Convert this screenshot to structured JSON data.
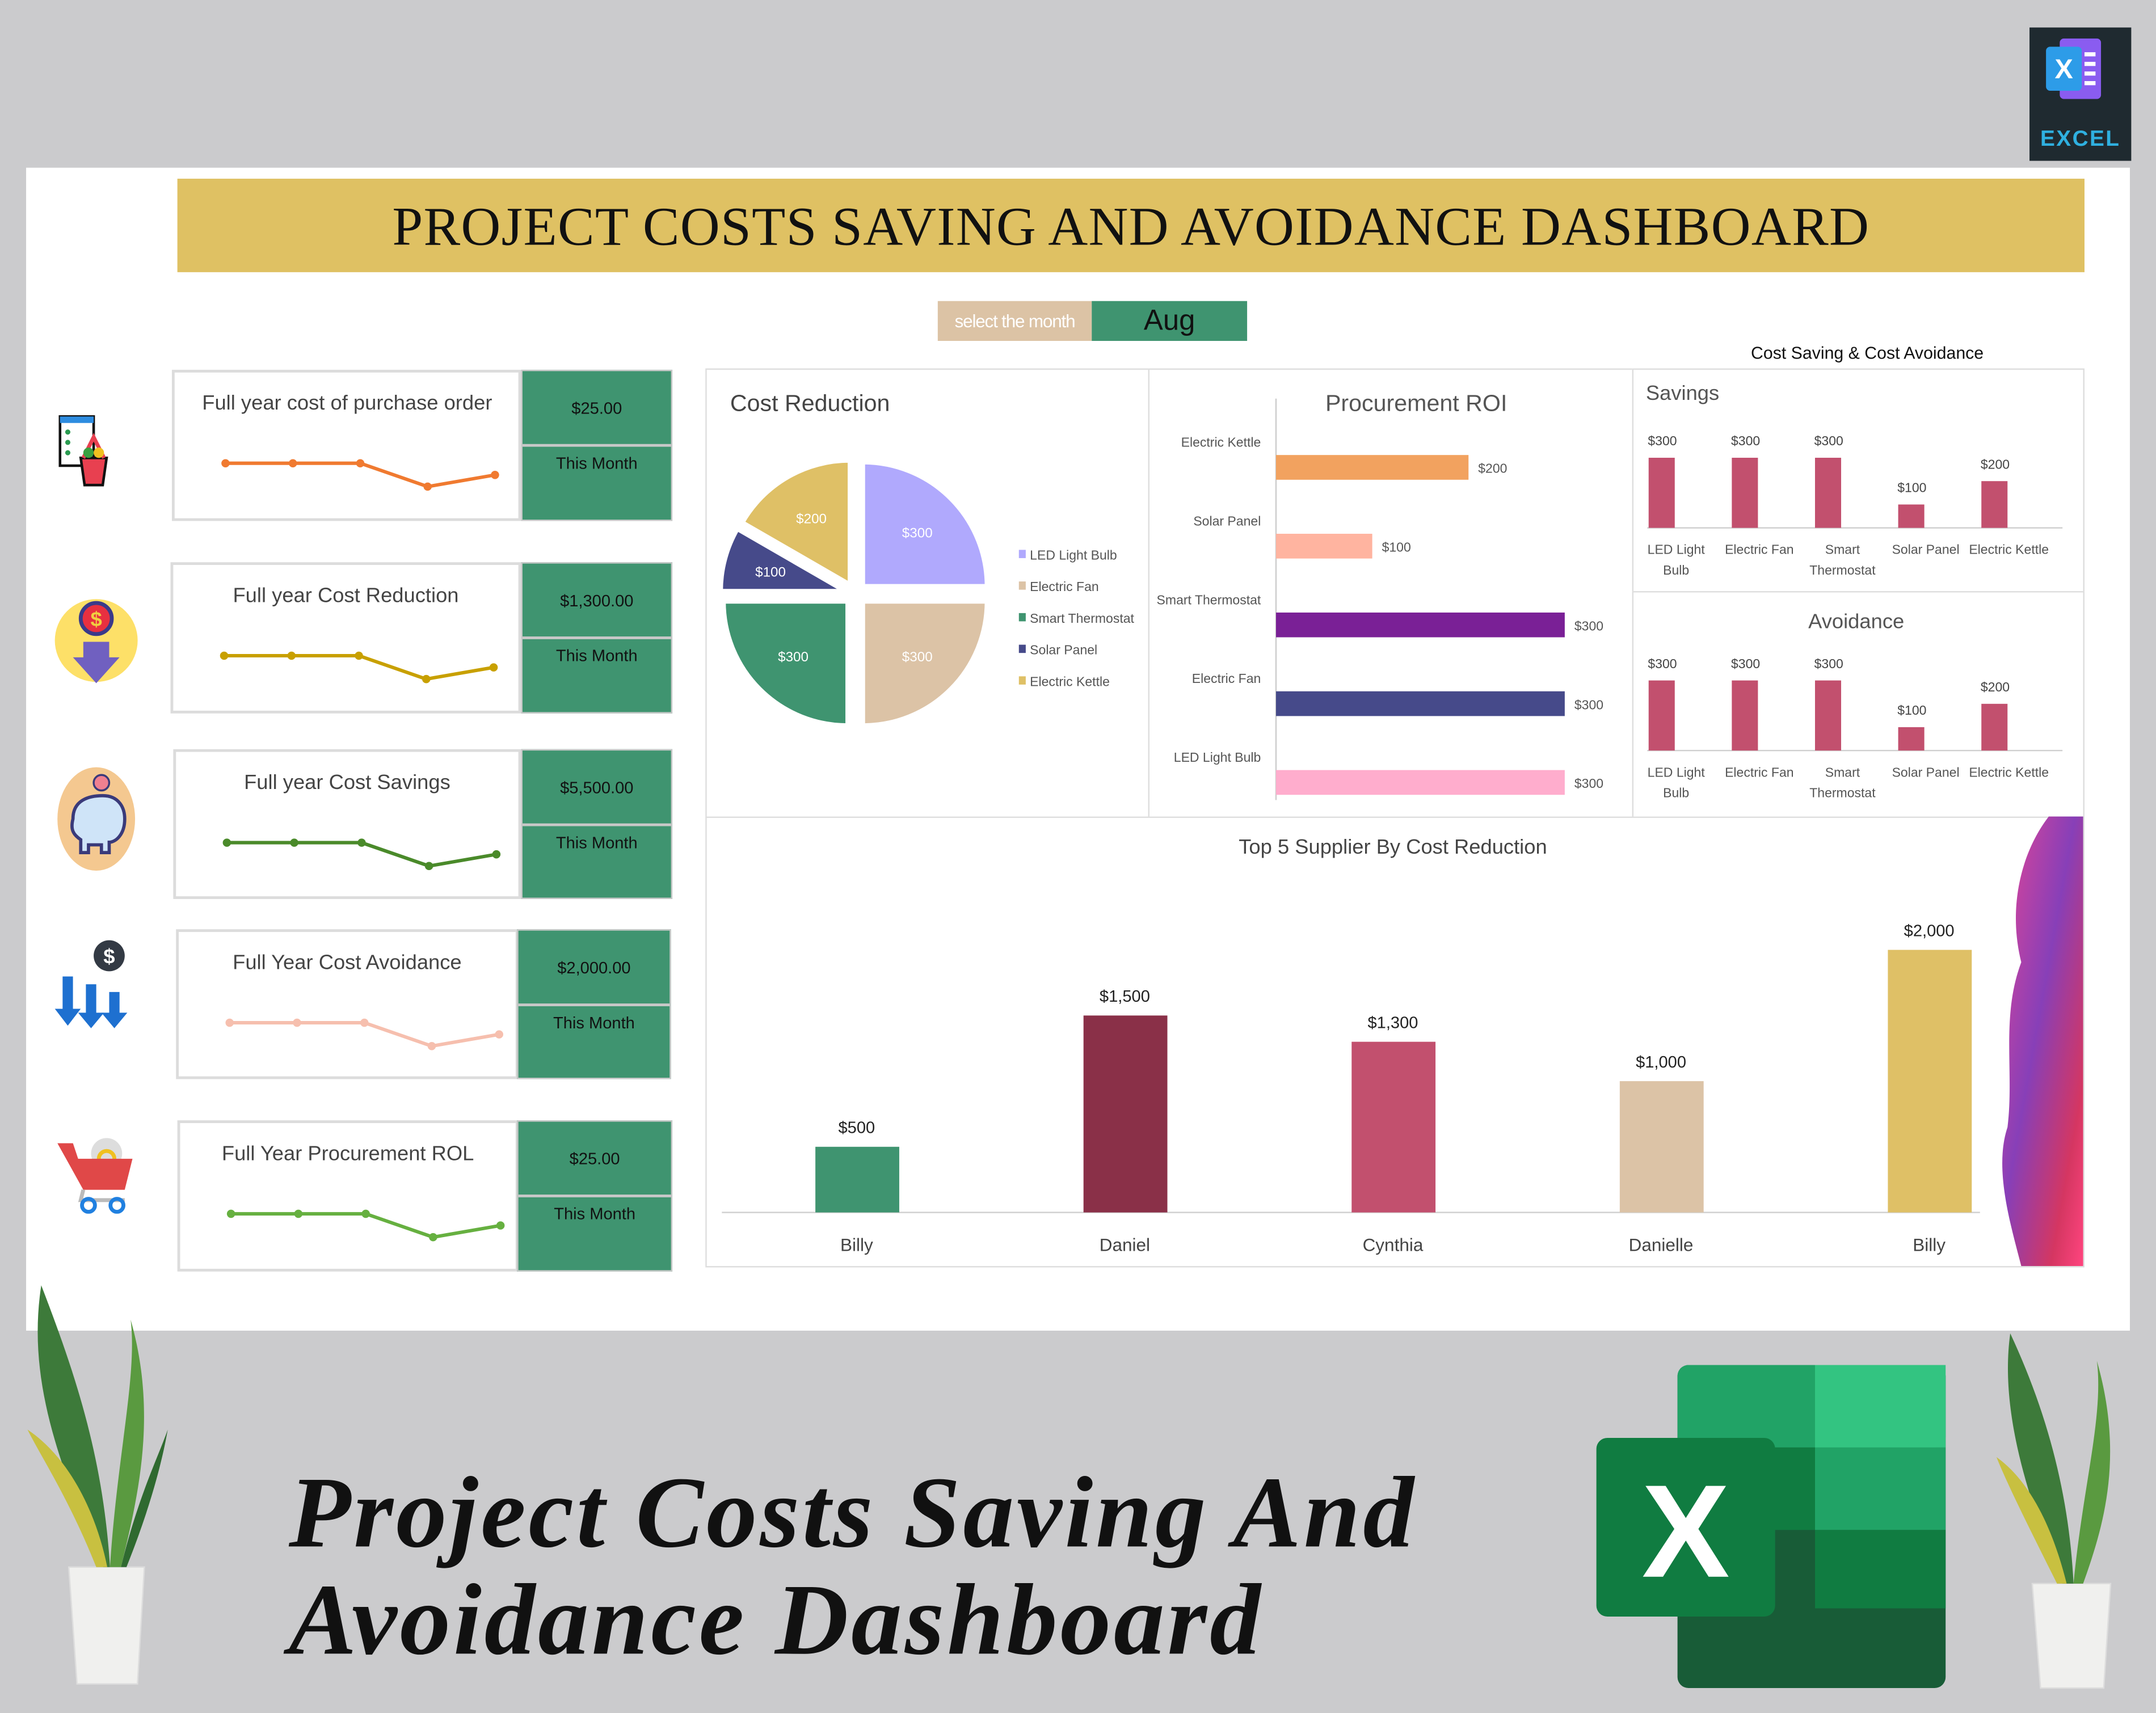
{
  "brand_badge": {
    "label": "EXCEL",
    "icon": "excel-logo-icon"
  },
  "title": "PROJECT COSTS SAVING AND AVOIDANCE DASHBOARD",
  "month_selector": {
    "label": "select the month",
    "value": "Aug"
  },
  "kpis": [
    {
      "title": "Full year cost of purchase order",
      "value": "$25.00",
      "period": "This Month",
      "icon": "purchase-basket-icon",
      "line_color": "#f07a30",
      "trend": [
        3,
        3,
        3,
        1,
        2
      ]
    },
    {
      "title": "Full year Cost Reduction",
      "value": "$1,300.00",
      "period": "This Month",
      "icon": "dollar-down-arrow-icon",
      "line_color": "#c8a000",
      "trend": [
        3,
        3,
        3,
        1,
        2
      ]
    },
    {
      "title": "Full year Cost Savings",
      "value": "$5,500.00",
      "period": "This Month",
      "icon": "piggy-bank-icon",
      "line_color": "#4a8a2a",
      "trend": [
        3,
        3,
        3,
        1,
        2
      ]
    },
    {
      "title": "Full Year Cost Avoidance",
      "value": "$2,000.00",
      "period": "This Month",
      "icon": "dollar-arrows-down-icon",
      "line_color": "#f6bfae",
      "trend": [
        3,
        3,
        3,
        1,
        2
      ]
    },
    {
      "title": "Full Year Procurement ROL",
      "value": "$25.00",
      "period": "This Month",
      "icon": "shopping-cart-gear-icon",
      "line_color": "#66b040",
      "trend": [
        3,
        3,
        3,
        1,
        2
      ]
    }
  ],
  "section_title_cost_saving": "Cost Saving & Cost Avoidance",
  "chart_data": [
    {
      "type": "pie",
      "title": "Cost Reduction",
      "legend": "right",
      "categories": [
        "LED Light Bulb",
        "Electric Fan",
        "Smart Thermostat",
        "Solar Panel",
        "Electric Kettle"
      ],
      "values": [
        300,
        300,
        300,
        100,
        200
      ],
      "labels": [
        "$300",
        "$300",
        "$300",
        "$100",
        "$200"
      ],
      "colors": [
        "#b0a9fd",
        "#dcc3a6",
        "#3f9470",
        "#464a8a",
        "#dfc066"
      ]
    },
    {
      "type": "bar",
      "orientation": "horizontal",
      "title": "Procurement ROI",
      "categories": [
        "Electric Kettle",
        "Solar Panel",
        "Smart Thermostat",
        "Electric Fan",
        "LED Light Bulb"
      ],
      "values": [
        200,
        100,
        300,
        300,
        300
      ],
      "labels": [
        "$200",
        "$100",
        "$300",
        "$300",
        "$300"
      ],
      "colors": [
        "#f2a25f",
        "#ffb4a0",
        "#7a2096",
        "#464a8a",
        "#ffadcd"
      ]
    },
    {
      "type": "bar",
      "title": "Savings",
      "categories": [
        "LED Light Bulb",
        "Electric Fan",
        "Smart Thermostat",
        "Solar Panel",
        "Electric Kettle"
      ],
      "values": [
        300,
        300,
        300,
        100,
        200
      ],
      "labels": [
        "$300",
        "$300",
        "$300",
        "$100",
        "$200"
      ],
      "color": "#c2506e"
    },
    {
      "type": "bar",
      "title": "Avoidance",
      "categories": [
        "LED Light Bulb",
        "Electric Fan",
        "Smart Thermostat",
        "Solar Panel",
        "Electric Kettle"
      ],
      "values": [
        300,
        300,
        300,
        100,
        200
      ],
      "labels": [
        "$300",
        "$300",
        "$300",
        "$100",
        "$200"
      ],
      "color": "#c2506e"
    },
    {
      "type": "bar",
      "title": "Top 5 Supplier By Cost Reduction",
      "categories": [
        "Billy",
        "Daniel",
        "Cynthia",
        "Danielle",
        "Billy"
      ],
      "values": [
        500,
        1500,
        1300,
        1000,
        2000
      ],
      "labels": [
        "$500",
        "$1,500",
        "$1,300",
        "$1,000",
        "$2,000"
      ],
      "colors": [
        "#3f9470",
        "#8a3048",
        "#c2506e",
        "#dcc3a6",
        "#dfc066"
      ]
    }
  ],
  "footer_title": [
    "Project Costs Saving And",
    "Avoidance Dashboard"
  ]
}
